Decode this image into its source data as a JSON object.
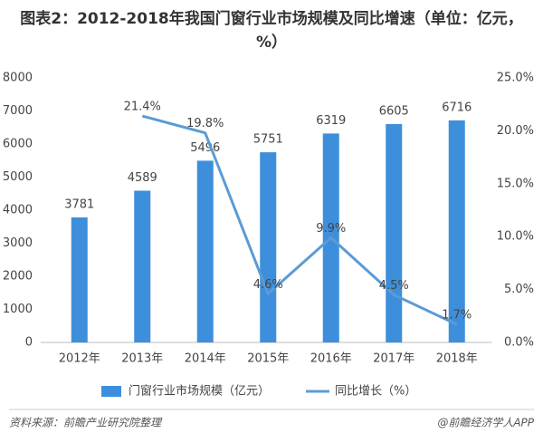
{
  "chart_data": {
    "type": "bar",
    "title": "图表2：2012-2018年我国门窗行业市场规模及同比增速（单位：亿元，%）",
    "categories": [
      "2012年",
      "2013年",
      "2014年",
      "2015年",
      "2016年",
      "2017年",
      "2018年"
    ],
    "series": [
      {
        "name": "门窗行业市场规模（亿元）",
        "type": "bar",
        "color": "#3d8fdc",
        "values": [
          3781,
          4589,
          5496,
          5751,
          6319,
          6605,
          6716
        ]
      },
      {
        "name": "同比增长（%）",
        "type": "line",
        "axis": "y2",
        "color": "#5b9bd5",
        "values": [
          null,
          21.4,
          19.8,
          4.6,
          9.9,
          4.5,
          1.7
        ],
        "value_labels": [
          null,
          "21.4%",
          "19.8%",
          "4.6%",
          "9.9%",
          "4.5%",
          "1.7%"
        ]
      }
    ],
    "ylim": [
      0,
      8000
    ],
    "yticks": [
      0,
      1000,
      2000,
      3000,
      4000,
      5000,
      6000,
      7000,
      8000
    ],
    "y2lim": [
      0,
      25
    ],
    "y2ticks": [
      {
        "value": 0,
        "label": "0.0%"
      },
      {
        "value": 5,
        "label": "5.0%"
      },
      {
        "value": 10,
        "label": "10.0%"
      },
      {
        "value": 15,
        "label": "15.0%"
      },
      {
        "value": 20,
        "label": "20.0%"
      },
      {
        "value": 25,
        "label": "25.0%"
      }
    ],
    "legend": "bottom",
    "source": "资料来源：前瞻产业研究院整理",
    "credit": "@前瞻经济学人APP"
  }
}
